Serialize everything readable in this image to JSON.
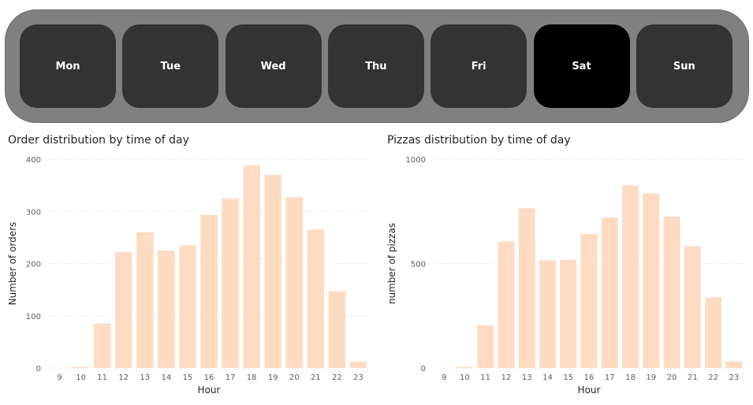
{
  "slicer": {
    "days": [
      "Mon",
      "Tue",
      "Wed",
      "Thu",
      "Fri",
      "Sat",
      "Sun"
    ],
    "selected": "Sat",
    "colors": {
      "button": "#333333",
      "selected": "#000000",
      "background": "#808080"
    }
  },
  "chart_data": [
    {
      "type": "bar",
      "title": "Order distribution by time of day",
      "xlabel": "Hour",
      "ylabel": "Number of orders",
      "categories": [
        "9",
        "10",
        "11",
        "12",
        "13",
        "14",
        "15",
        "16",
        "17",
        "18",
        "19",
        "20",
        "21",
        "22",
        "23"
      ],
      "values": [
        0,
        2,
        85,
        222,
        260,
        225,
        235,
        293,
        325,
        388,
        370,
        327,
        265,
        147,
        12
      ],
      "ylim": [
        0,
        400
      ],
      "yticks": [
        0,
        100,
        200,
        300,
        400
      ],
      "grid": true,
      "bar_color": "#FFDBC4"
    },
    {
      "type": "bar",
      "title": "Pizzas distribution by time of day",
      "xlabel": "Hour",
      "ylabel": "number of pizzas",
      "categories": [
        "9",
        "10",
        "11",
        "12",
        "13",
        "14",
        "15",
        "16",
        "17",
        "18",
        "19",
        "20",
        "21",
        "22",
        "23"
      ],
      "values": [
        0,
        5,
        205,
        605,
        765,
        515,
        518,
        642,
        720,
        875,
        835,
        725,
        583,
        338,
        32
      ],
      "ylim": [
        0,
        1000
      ],
      "yticks": [
        0,
        500,
        1000
      ],
      "grid": true,
      "bar_color": "#FFDBC4"
    }
  ]
}
